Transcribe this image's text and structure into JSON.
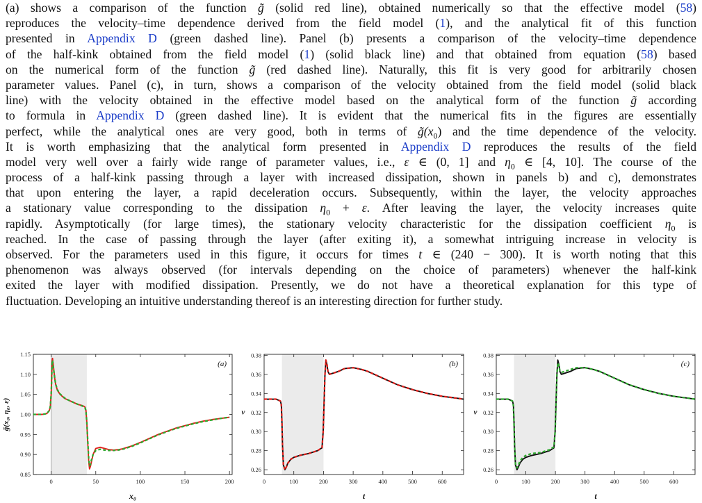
{
  "paragraph": {
    "lines": [
      [
        {
          "t": "(a) shows a comparison of the function "
        },
        {
          "t": "g̃",
          "i": 1
        },
        {
          "t": " (solid red line), obtained numerically so that the effective model ("
        },
        {
          "t": "58",
          "link": 1
        },
        {
          "t": ")"
        }
      ],
      [
        {
          "t": "reproduces the velocity–time dependence derived from the field model ("
        },
        {
          "t": "1",
          "link": 1
        },
        {
          "t": "), and the analytical fit of this function"
        }
      ],
      [
        {
          "t": "presented in "
        },
        {
          "t": "Appendix D",
          "link": 1
        },
        {
          "t": " (green dashed line). Panel (b) presents a comparison of the velocity–time dependence"
        }
      ],
      [
        {
          "t": "of the half-kink obtained from the field model ("
        },
        {
          "t": "1",
          "link": 1
        },
        {
          "t": ") (solid black line) and that obtained from equation ("
        },
        {
          "t": "58",
          "link": 1
        },
        {
          "t": ") based"
        }
      ],
      [
        {
          "t": "on the numerical form of the function "
        },
        {
          "t": "g̃",
          "i": 1
        },
        {
          "t": " (red dashed line). Naturally, this fit is very good for arbitrarily chosen"
        }
      ],
      [
        {
          "t": "parameter values. Panel (c), in turn, shows a comparison of the velocity obtained from the field model (solid black"
        }
      ],
      [
        {
          "t": "line) with the velocity obtained in the effective model based on the analytical form of the function "
        },
        {
          "t": "g̃",
          "i": 1
        },
        {
          "t": " according"
        }
      ],
      [
        {
          "t": "to formula in "
        },
        {
          "t": "Appendix D",
          "link": 1
        },
        {
          "t": " (green dashed line). It is evident that the numerical fits in the figures are essentially"
        }
      ],
      [
        {
          "t": "perfect, while the analytical ones are very good, both in terms of "
        },
        {
          "t": "g̃(x",
          "i": 1
        },
        {
          "t": "0",
          "sub": 1
        },
        {
          "t": ")",
          "i": 0
        },
        {
          "t": " and the time dependence of the velocity."
        }
      ],
      [
        {
          "t": "It is worth emphasizing that the analytical form presented in "
        },
        {
          "t": "Appendix D",
          "link": 1
        },
        {
          "t": " reproduces the results of the field"
        }
      ],
      [
        {
          "t": "model very well over a fairly wide range of parameter values, i.e., "
        },
        {
          "t": "ε",
          "i": 1
        },
        {
          "t": " ∈ (0, 1] and "
        },
        {
          "t": "η",
          "i": 1
        },
        {
          "t": "0",
          "sub": 1
        },
        {
          "t": " ∈ [4, 10]. The course of the"
        }
      ],
      [
        {
          "t": "process of a half-kink passing through a layer with increased dissipation, shown in panels b) and c), demonstrates"
        }
      ],
      [
        {
          "t": "that upon entering the layer, a rapid deceleration occurs. Subsequently, within the layer, the velocity approaches"
        }
      ],
      [
        {
          "t": "a stationary value corresponding to the dissipation "
        },
        {
          "t": "η",
          "i": 1
        },
        {
          "t": "0",
          "sub": 1
        },
        {
          "t": " + "
        },
        {
          "t": "ε",
          "i": 1
        },
        {
          "t": ". After leaving the layer, the velocity increases quite"
        }
      ],
      [
        {
          "t": "rapidly. Asymptotically (for large times), the stationary velocity characteristic for the dissipation coefficient "
        },
        {
          "t": "η",
          "i": 1
        },
        {
          "t": "0",
          "sub": 1
        },
        {
          "t": " is"
        }
      ],
      [
        {
          "t": "reached. In the case of passing through the layer (after exiting it), a somewhat intriguing increase in velocity is"
        }
      ],
      [
        {
          "t": "observed. For the parameters used in this figure, it occurs for times "
        },
        {
          "t": "t",
          "i": 1
        },
        {
          "t": " ∈ (240 − 300). It is worth noting that this"
        }
      ],
      [
        {
          "t": "phenomenon was always observed (for intervals depending on the choice of parameters) whenever the half-kink"
        }
      ],
      [
        {
          "t": "exited the layer with modified dissipation. Presently, we do not have a theoretical explanation for this type of"
        }
      ],
      [
        {
          "t": "fluctuation. Developing an intuitive understanding thereof is an interesting direction for further study.",
          "last": 1
        }
      ]
    ]
  },
  "colors": {
    "link": "#1a3cc8",
    "red": "#e0201c",
    "green": "#2fa82f",
    "black": "#111111",
    "layer": "#ebebeb"
  },
  "chart_data": [
    {
      "type": "line",
      "panel_label": "(a)",
      "xlabel": "x₀",
      "ylabel": "g̃(x₀, η₀, ε)",
      "xlim": [
        -20,
        203
      ],
      "ylim": [
        0.85,
        1.15
      ],
      "xticks": [
        0,
        50,
        100,
        150,
        200
      ],
      "yticks": [
        0.85,
        0.9,
        0.95,
        1.0,
        1.05,
        1.1,
        1.15
      ],
      "ytick_decimals": 2,
      "shaded_interval": [
        0,
        40
      ],
      "baseline_x": 0,
      "series": [
        {
          "style": "solid",
          "color": "#e0201c",
          "x": [
            -20,
            -10,
            -5,
            -2,
            -1,
            0,
            0.5,
            1,
            1.5,
            2,
            3,
            4,
            5,
            7,
            10,
            15,
            20,
            25,
            30,
            35,
            37,
            38,
            39,
            40,
            41,
            42,
            43,
            44,
            45,
            47,
            50,
            55,
            60,
            65,
            70,
            75,
            80,
            90,
            100,
            110,
            120,
            130,
            140,
            150,
            160,
            170,
            180,
            190,
            200
          ],
          "y": [
            1.0,
            1.0,
            1.002,
            1.01,
            1.02,
            1.05,
            1.09,
            1.13,
            1.14,
            1.13,
            1.11,
            1.09,
            1.075,
            1.06,
            1.05,
            1.04,
            1.035,
            1.03,
            1.025,
            1.022,
            1.02,
            1.018,
            1.01,
            0.98,
            0.93,
            0.885,
            0.864,
            0.87,
            0.88,
            0.9,
            0.915,
            0.918,
            0.915,
            0.912,
            0.911,
            0.912,
            0.914,
            0.921,
            0.93,
            0.94,
            0.95,
            0.958,
            0.966,
            0.972,
            0.978,
            0.983,
            0.987,
            0.99,
            0.993
          ]
        },
        {
          "style": "dashed",
          "color": "#2fa82f",
          "x": [
            -20,
            -10,
            -5,
            -2,
            -1,
            0,
            0.5,
            1,
            1.5,
            2,
            3,
            4,
            5,
            7,
            10,
            15,
            20,
            25,
            30,
            35,
            37,
            38,
            39,
            40,
            41,
            42,
            43,
            44,
            45,
            47,
            50,
            55,
            60,
            65,
            70,
            75,
            80,
            90,
            100,
            110,
            120,
            130,
            140,
            150,
            160,
            170,
            180,
            190,
            200
          ],
          "y": [
            1.0,
            1.0,
            1.002,
            1.01,
            1.02,
            1.05,
            1.088,
            1.125,
            1.135,
            1.127,
            1.108,
            1.09,
            1.076,
            1.061,
            1.051,
            1.041,
            1.035,
            1.03,
            1.025,
            1.021,
            1.019,
            1.017,
            1.008,
            0.98,
            0.935,
            0.892,
            0.872,
            0.875,
            0.885,
            0.9,
            0.91,
            0.913,
            0.911,
            0.91,
            0.91,
            0.911,
            0.913,
            0.92,
            0.929,
            0.939,
            0.949,
            0.957,
            0.965,
            0.971,
            0.977,
            0.982,
            0.986,
            0.99,
            0.993
          ]
        }
      ]
    },
    {
      "type": "line",
      "panel_label": "(b)",
      "xlabel": "t",
      "ylabel": "v",
      "xlim": [
        0,
        672
      ],
      "ylim": [
        0.255,
        0.381
      ],
      "xticks": [
        0,
        100,
        200,
        300,
        400,
        500,
        600
      ],
      "yticks": [
        0.26,
        0.28,
        0.3,
        0.32,
        0.34,
        0.36,
        0.38
      ],
      "ytick_decimals": 2,
      "shaded_interval": [
        60,
        200
      ],
      "series": [
        {
          "style": "solid",
          "color": "#111111",
          "x": [
            0,
            20,
            40,
            55,
            58,
            60,
            62,
            65,
            70,
            75,
            80,
            90,
            100,
            120,
            150,
            180,
            195,
            199,
            202,
            205,
            208,
            212,
            215,
            220,
            230,
            250,
            270,
            300,
            330,
            350,
            400,
            450,
            500,
            550,
            600,
            650,
            672
          ],
          "y": [
            0.334,
            0.334,
            0.334,
            0.332,
            0.328,
            0.31,
            0.285,
            0.265,
            0.26,
            0.263,
            0.267,
            0.271,
            0.273,
            0.275,
            0.277,
            0.28,
            0.283,
            0.3,
            0.33,
            0.36,
            0.375,
            0.37,
            0.363,
            0.36,
            0.361,
            0.363,
            0.366,
            0.367,
            0.365,
            0.363,
            0.356,
            0.349,
            0.344,
            0.34,
            0.337,
            0.335,
            0.334
          ]
        },
        {
          "style": "dashed",
          "color": "#e0201c",
          "x": [
            0,
            20,
            40,
            55,
            58,
            60,
            62,
            65,
            70,
            75,
            80,
            90,
            100,
            120,
            150,
            180,
            195,
            199,
            202,
            205,
            208,
            212,
            215,
            220,
            230,
            250,
            270,
            300,
            330,
            350,
            400,
            450,
            500,
            550,
            600,
            650,
            672
          ],
          "y": [
            0.334,
            0.334,
            0.334,
            0.332,
            0.328,
            0.31,
            0.285,
            0.265,
            0.26,
            0.263,
            0.267,
            0.271,
            0.273,
            0.275,
            0.277,
            0.28,
            0.283,
            0.3,
            0.33,
            0.36,
            0.375,
            0.37,
            0.363,
            0.36,
            0.361,
            0.363,
            0.366,
            0.367,
            0.365,
            0.363,
            0.356,
            0.349,
            0.344,
            0.34,
            0.337,
            0.335,
            0.334
          ]
        }
      ]
    },
    {
      "type": "line",
      "panel_label": "(c)",
      "xlabel": "t",
      "ylabel": "v",
      "xlim": [
        0,
        672
      ],
      "ylim": [
        0.255,
        0.381
      ],
      "xticks": [
        0,
        100,
        200,
        300,
        400,
        500,
        600
      ],
      "yticks": [
        0.26,
        0.28,
        0.3,
        0.32,
        0.34,
        0.36,
        0.38
      ],
      "ytick_decimals": 2,
      "shaded_interval": [
        60,
        200
      ],
      "series": [
        {
          "style": "solid",
          "color": "#111111",
          "x": [
            0,
            20,
            40,
            55,
            58,
            60,
            62,
            65,
            70,
            75,
            80,
            90,
            100,
            120,
            150,
            180,
            195,
            199,
            202,
            205,
            208,
            212,
            215,
            220,
            230,
            250,
            270,
            300,
            330,
            350,
            400,
            450,
            500,
            550,
            600,
            650,
            672
          ],
          "y": [
            0.334,
            0.334,
            0.334,
            0.332,
            0.328,
            0.31,
            0.285,
            0.265,
            0.26,
            0.263,
            0.267,
            0.271,
            0.273,
            0.275,
            0.277,
            0.28,
            0.283,
            0.3,
            0.33,
            0.36,
            0.375,
            0.37,
            0.363,
            0.36,
            0.361,
            0.363,
            0.366,
            0.367,
            0.365,
            0.363,
            0.356,
            0.349,
            0.344,
            0.34,
            0.337,
            0.335,
            0.334
          ]
        },
        {
          "style": "dashed",
          "color": "#2fa82f",
          "x": [
            0,
            20,
            40,
            55,
            58,
            60,
            62,
            65,
            70,
            75,
            80,
            90,
            100,
            120,
            150,
            180,
            195,
            199,
            202,
            205,
            208,
            212,
            215,
            220,
            230,
            250,
            270,
            300,
            330,
            350,
            400,
            450,
            500,
            550,
            600,
            650,
            672
          ],
          "y": [
            0.334,
            0.334,
            0.334,
            0.332,
            0.327,
            0.308,
            0.284,
            0.266,
            0.262,
            0.265,
            0.269,
            0.273,
            0.275,
            0.277,
            0.278,
            0.281,
            0.284,
            0.3,
            0.329,
            0.358,
            0.372,
            0.369,
            0.364,
            0.362,
            0.363,
            0.365,
            0.367,
            0.367,
            0.365,
            0.363,
            0.356,
            0.349,
            0.344,
            0.34,
            0.337,
            0.335,
            0.334
          ]
        }
      ]
    }
  ]
}
